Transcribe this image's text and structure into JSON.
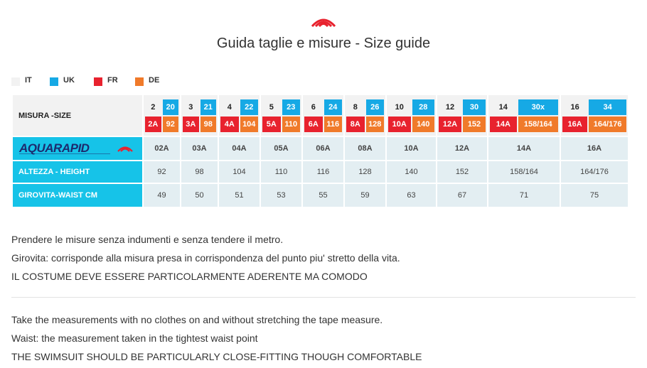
{
  "page": {
    "title": "Guida taglie e misure - Size guide"
  },
  "colors": {
    "it": "#f2f2f2",
    "uk": "#16a9e5",
    "fr": "#e8222e",
    "de": "#f07a2a",
    "label_cyan": "#16c3e8",
    "brand_red": "#e8222e"
  },
  "legend": [
    {
      "code": "it",
      "label": "IT"
    },
    {
      "code": "uk",
      "label": "UK"
    },
    {
      "code": "fr",
      "label": "FR"
    },
    {
      "code": "de",
      "label": "DE"
    }
  ],
  "table": {
    "header_label": "MISURA -SIZE",
    "brand_logo_text": "AQUARAPID",
    "height_label": "ALTEZZA - HEIGHT",
    "waist_label": "GIROVITA-WAIST CM",
    "columns": [
      {
        "it": "2",
        "uk": "20",
        "fr": "2A",
        "de": "92",
        "brand": "02A",
        "height": "92",
        "waist": "49"
      },
      {
        "it": "3",
        "uk": "21",
        "fr": "3A",
        "de": "98",
        "brand": "03A",
        "height": "98",
        "waist": "50"
      },
      {
        "it": "4",
        "uk": "22",
        "fr": "4A",
        "de": "104",
        "brand": "04A",
        "height": "104",
        "waist": "51"
      },
      {
        "it": "5",
        "uk": "23",
        "fr": "5A",
        "de": "110",
        "brand": "05A",
        "height": "110",
        "waist": "53"
      },
      {
        "it": "6",
        "uk": "24",
        "fr": "6A",
        "de": "116",
        "brand": "06A",
        "height": "116",
        "waist": "55"
      },
      {
        "it": "8",
        "uk": "26",
        "fr": "8A",
        "de": "128",
        "brand": "08A",
        "height": "128",
        "waist": "59"
      },
      {
        "it": "10",
        "uk": "28",
        "fr": "10A",
        "de": "140",
        "brand": "10A",
        "height": "140",
        "waist": "63"
      },
      {
        "it": "12",
        "uk": "30",
        "fr": "12A",
        "de": "152",
        "brand": "12A",
        "height": "152",
        "waist": "67"
      },
      {
        "it": "14",
        "uk": "30x",
        "fr": "14A",
        "de": "158/164",
        "brand": "14A",
        "height": "158/164",
        "waist": "71"
      },
      {
        "it": "16",
        "uk": "34",
        "fr": "16A",
        "de": "164/176",
        "brand": "16A",
        "height": "164/176",
        "waist": "75"
      }
    ]
  },
  "notes_it": [
    "Prendere le misure senza indumenti e senza tendere il metro.",
    "Girovita: corrisponde alla misura presa in corrispondenza del punto piu' stretto della vita.",
    "IL COSTUME DEVE ESSERE PARTICOLARMENTE ADERENTE MA COMODO"
  ],
  "notes_en": [
    "Take the measurements with no clothes on and without stretching the tape measure.",
    "Waist: the measurement taken in the tightest waist point",
    "THE SWIMSUIT SHOULD BE PARTICULARLY CLOSE-FITTING THOUGH COMFORTABLE"
  ]
}
